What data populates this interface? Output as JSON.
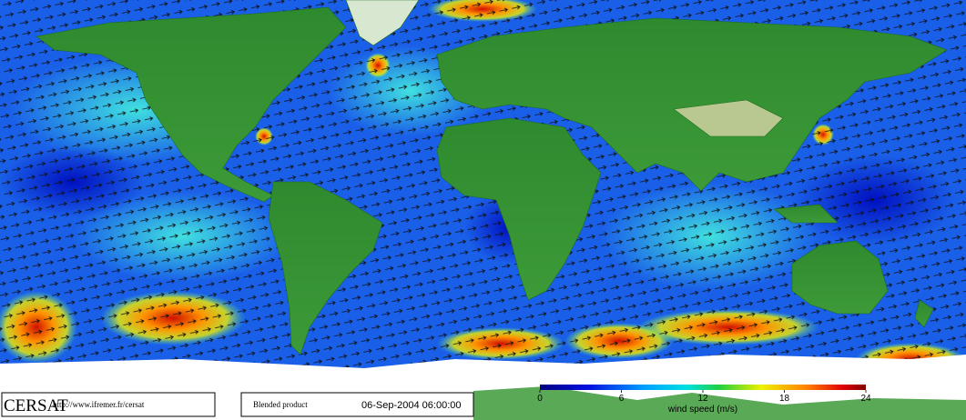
{
  "footer": {
    "logo": "CERSAT",
    "url": "http://www.ifremer.fr/cersat",
    "product": "Blended product",
    "timestamp": "06-Sep-2004 06:00:00"
  },
  "colorbar": {
    "label": "wind speed (m/s)",
    "lim": [
      0,
      24
    ],
    "ticks": [
      0,
      6,
      12,
      18,
      24
    ]
  }
}
